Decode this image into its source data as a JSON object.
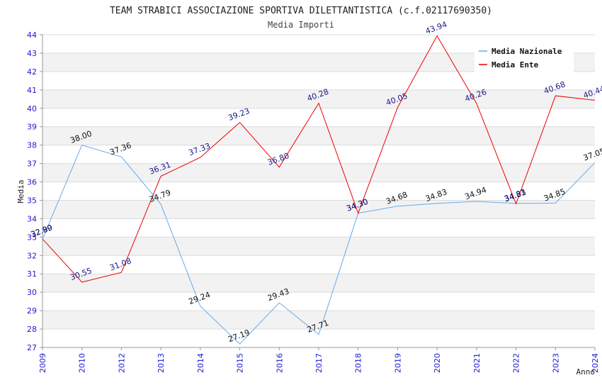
{
  "chart_data": {
    "type": "line",
    "title": "TEAM STRABICI ASSOCIAZIONE SPORTIVA DILETTANTISTICA (c.f.02117690350)",
    "subtitle": "Media Importi",
    "xlabel": "Anno",
    "ylabel": "Media",
    "categories": [
      "2009",
      "2010",
      "2012",
      "2013",
      "2014",
      "2015",
      "2016",
      "2017",
      "2018",
      "2019",
      "2020",
      "2021",
      "2022",
      "2023",
      "2024"
    ],
    "ylim": [
      27,
      44
    ],
    "yticks": [
      "27",
      "28",
      "29",
      "30",
      "31",
      "32",
      "33",
      "34",
      "35",
      "36",
      "37",
      "38",
      "39",
      "40",
      "41",
      "42",
      "43",
      "44"
    ],
    "grid": true,
    "legend_position": "top-right",
    "series": [
      {
        "name": "Media Nazionale",
        "color": "#66aaee",
        "label_color": "#111111",
        "values": [
          32.89,
          38.0,
          37.36,
          34.79,
          29.24,
          27.19,
          29.43,
          27.71,
          34.3,
          34.68,
          34.83,
          34.94,
          34.83,
          34.85,
          37.05
        ],
        "labels": [
          "32.89",
          "38.00",
          "37.36",
          "34.79",
          "29.24",
          "27.19",
          "29.43",
          "27.71",
          "34.30",
          "34.68",
          "34.83",
          "34.94",
          "34.83",
          "34.85",
          "37.05"
        ]
      },
      {
        "name": "Media Ente",
        "color": "#ee0000",
        "label_color": "#1a1a8a",
        "values": [
          32.9,
          30.55,
          31.08,
          36.31,
          37.33,
          39.23,
          36.8,
          40.28,
          34.3,
          40.05,
          43.94,
          40.26,
          34.81,
          40.68,
          40.44
        ],
        "labels": [
          "32.90",
          "30.55",
          "31.08",
          "36.31",
          "37.33",
          "39.23",
          "36.80",
          "40.28",
          "34.30",
          "40.05",
          "43.94",
          "40.26",
          "34.81",
          "40.68",
          "40.44"
        ]
      }
    ]
  }
}
